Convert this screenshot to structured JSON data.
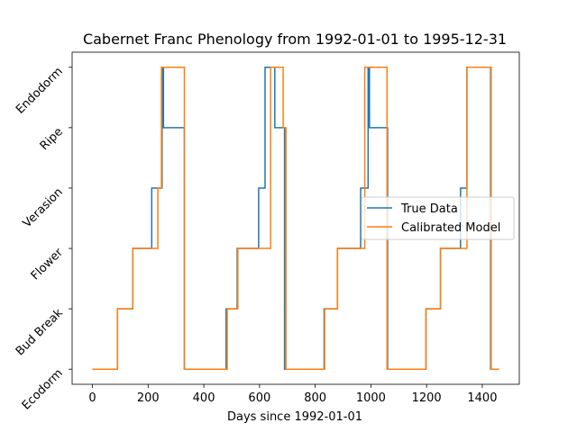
{
  "chart_data": {
    "type": "line",
    "title": "Cabernet Franc Phenology from 1992-01-01 to 1995-12-31",
    "xlabel": "Days since 1992-01-01",
    "ylabel": "",
    "xlim": [
      -73,
      1533
    ],
    "ylim": [
      -0.25,
      5.25
    ],
    "x_ticks": [
      0,
      200,
      400,
      600,
      800,
      1000,
      1200,
      1400
    ],
    "y_tick_labels": [
      "Ecodorm",
      "Bud Break",
      "Flower",
      "Verasion",
      "Ripe",
      "Endodorm"
    ],
    "grid": false,
    "legend_position": "center right",
    "series": [
      {
        "name": "True Data",
        "color": "#1f77b4",
        "step_points": [
          [
            0,
            0
          ],
          [
            90,
            1
          ],
          [
            145,
            2
          ],
          [
            213,
            3
          ],
          [
            235,
            3
          ],
          [
            250,
            5
          ],
          [
            255,
            4
          ],
          [
            330,
            0
          ],
          [
            478,
            0
          ],
          [
            480,
            1
          ],
          [
            520,
            2
          ],
          [
            597,
            3
          ],
          [
            610,
            3
          ],
          [
            620,
            5
          ],
          [
            655,
            4
          ],
          [
            690,
            0
          ],
          [
            830,
            0
          ],
          [
            832,
            1
          ],
          [
            880,
            2
          ],
          [
            963,
            3
          ],
          [
            975,
            3
          ],
          [
            990,
            5
          ],
          [
            995,
            4
          ],
          [
            1060,
            0
          ],
          [
            1195,
            0
          ],
          [
            1198,
            1
          ],
          [
            1250,
            2
          ],
          [
            1322,
            3
          ],
          [
            1340,
            3
          ],
          [
            1345,
            5
          ],
          [
            1430,
            0
          ],
          [
            1460,
            0
          ]
        ]
      },
      {
        "name": "Calibrated Model",
        "color": "#ff7f0e",
        "step_points": [
          [
            0,
            0
          ],
          [
            90,
            1
          ],
          [
            145,
            2
          ],
          [
            235,
            3
          ],
          [
            248,
            5
          ],
          [
            330,
            0
          ],
          [
            484,
            1
          ],
          [
            522,
            2
          ],
          [
            640,
            5
          ],
          [
            685,
            4
          ],
          [
            695,
            0
          ],
          [
            830,
            0
          ],
          [
            834,
            1
          ],
          [
            880,
            2
          ],
          [
            978,
            5
          ],
          [
            1058,
            0
          ],
          [
            1198,
            1
          ],
          [
            1250,
            2
          ],
          [
            1345,
            5
          ],
          [
            1432,
            0
          ],
          [
            1460,
            0
          ]
        ]
      }
    ]
  }
}
